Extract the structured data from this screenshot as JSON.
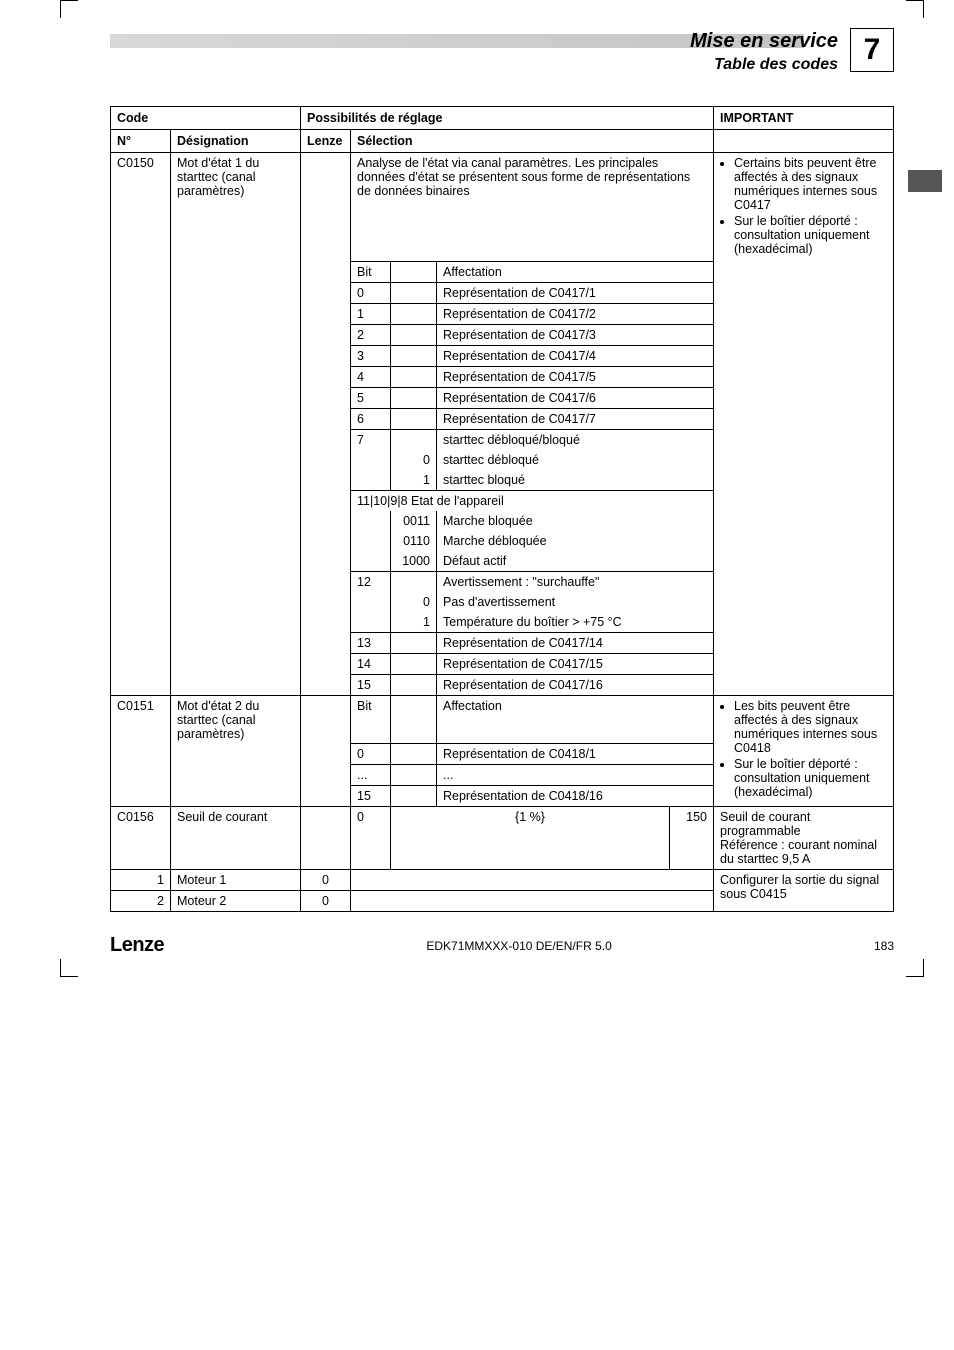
{
  "header": {
    "title": "Mise en service",
    "subtitle": "Table des codes",
    "chapter": "7"
  },
  "table": {
    "head": {
      "code": "Code",
      "poss": "Possibilités de réglage",
      "imp": "IMPORTANT",
      "num": "N°",
      "des": "Désignation",
      "lenze": "Lenze",
      "sel": "Sélection"
    },
    "c0150": {
      "code": "C0150",
      "des": "Mot d'état 1 du starttec (canal paramètres)",
      "seltext": "Analyse de l'état via canal paramètres. Les principales données d'état se présentent sous forme de représentations de données binaires",
      "imp": [
        "Certains bits peuvent être affectés à des signaux numériques internes sous C0417",
        "Sur le boîtier déporté : consultation uniquement (hexadécimal)"
      ],
      "bit_label": "Bit",
      "aff_label": "Affectation",
      "rows": [
        {
          "b": "0",
          "t": "Représentation de C0417/1"
        },
        {
          "b": "1",
          "t": "Représentation de C0417/2"
        },
        {
          "b": "2",
          "t": "Représentation de C0417/3"
        },
        {
          "b": "3",
          "t": "Représentation de C0417/4"
        },
        {
          "b": "4",
          "t": "Représentation de C0417/5"
        },
        {
          "b": "5",
          "t": "Représentation de C0417/6"
        },
        {
          "b": "6",
          "t": "Représentation de C0417/7"
        }
      ],
      "bit7": {
        "b": "7",
        "t": "starttec débloqué/bloqué"
      },
      "bit7_0": "starttec débloqué",
      "bit7_1": "starttec bloqué",
      "etat_head": "11|10|9|8 Etat de l'appareil",
      "etat_rows": [
        {
          "b": "0011",
          "t": "Marche bloquée"
        },
        {
          "b": "0110",
          "t": "Marche débloquée"
        },
        {
          "b": "1000",
          "t": "Défaut actif"
        }
      ],
      "bit12": {
        "b": "12",
        "t": "Avertissement : \"surchauffe\""
      },
      "bit12_0": "Pas d'avertissement",
      "bit12_1": "Température du boîtier > +75 °C",
      "tail": [
        {
          "b": "13",
          "t": "Représentation de C0417/14"
        },
        {
          "b": "14",
          "t": "Représentation de C0417/15"
        },
        {
          "b": "15",
          "t": "Représentation de C0417/16"
        }
      ]
    },
    "c0151": {
      "code": "C0151",
      "des": "Mot d'état 2 du starttec (canal paramètres)",
      "bit_label": "Bit",
      "aff_label": "Affectation",
      "r0": {
        "b": "0",
        "t": "Représentation de C0418/1"
      },
      "dots": {
        "b": "...",
        "t": "..."
      },
      "r15": {
        "b": "15",
        "t": "Représentation de C0418/16"
      },
      "imp": [
        "Les bits peuvent être affectés à des signaux numériques internes sous C0418",
        "Sur le boîtier déporté : consultation uniquement (hexadécimal)"
      ]
    },
    "c0156": {
      "code": "C0156",
      "des": "Seuil de courant",
      "val0": "0",
      "unit": "{1 %}",
      "val150": "150",
      "imp": "Seuil de courant programmable\nRéférence : courant nominal du starttec 9,5 A",
      "m1n": "1",
      "m1": "Moteur 1",
      "m1l": "0",
      "m2n": "2",
      "m2": "Moteur 2",
      "m2l": "0",
      "conf": "Configurer la sortie du signal sous C0415"
    }
  },
  "footer": {
    "logo": "Lenze",
    "doc": "EDK71MMXXX-010 DE/EN/FR 5.0",
    "page": "183"
  }
}
